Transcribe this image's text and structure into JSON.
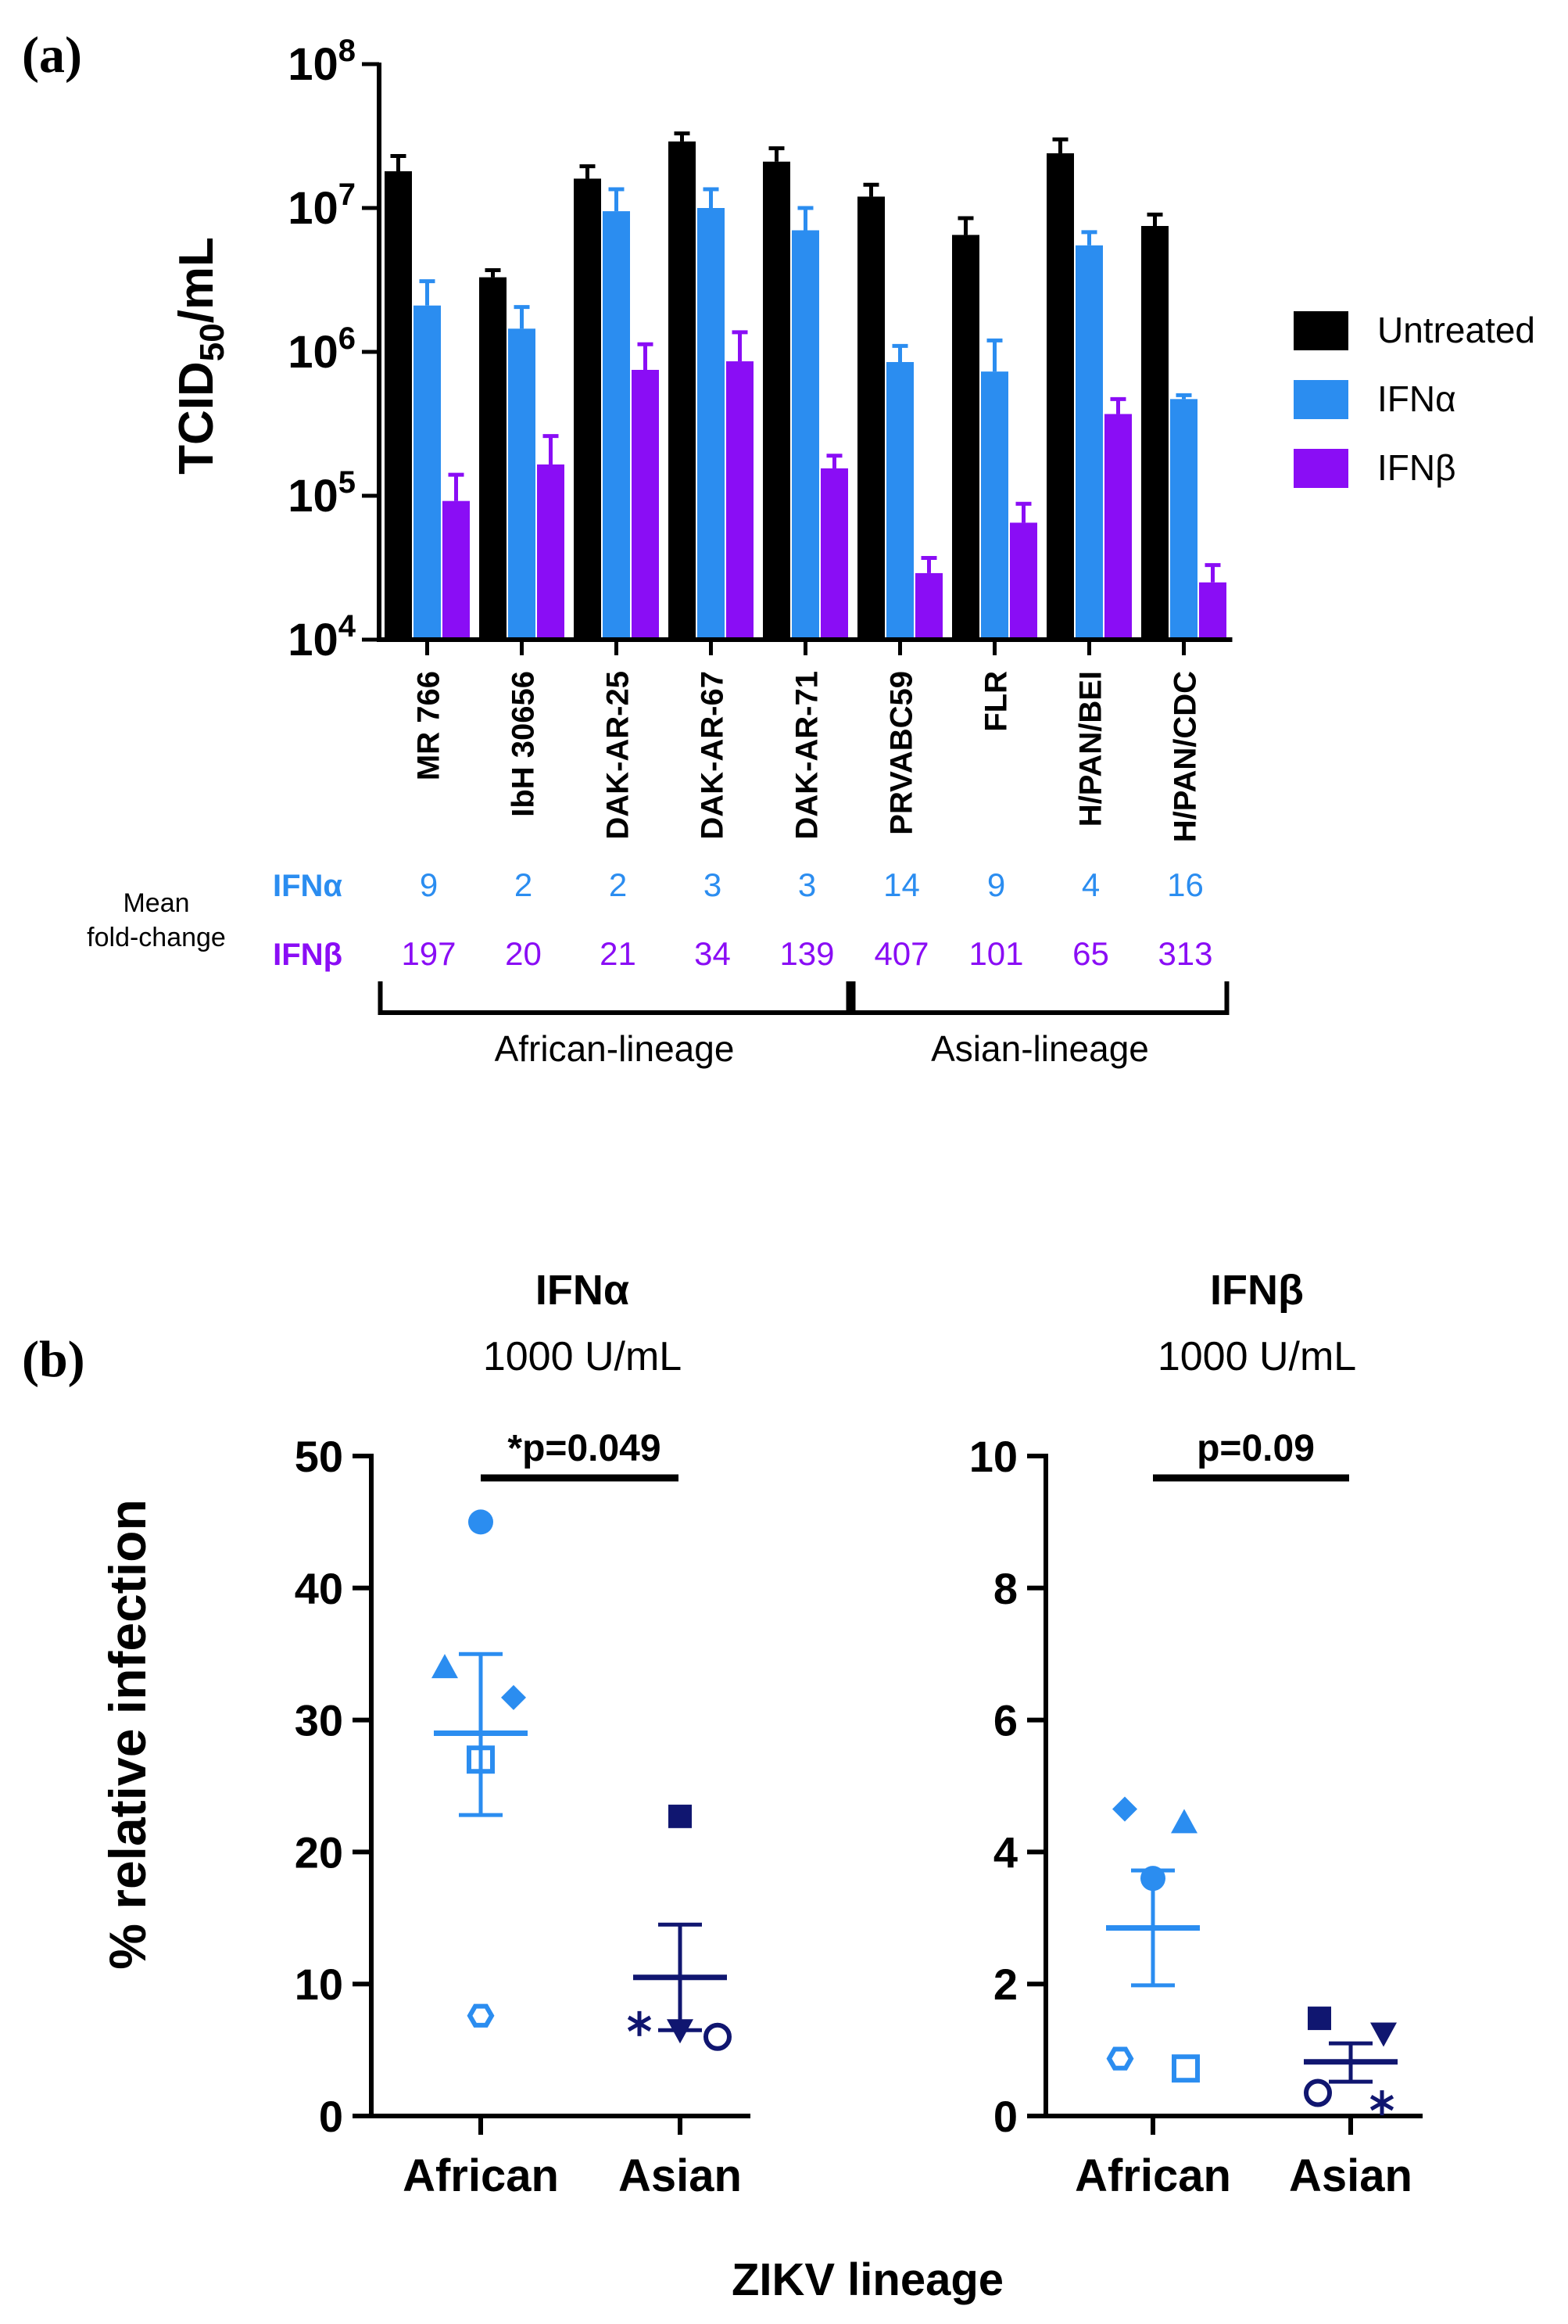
{
  "colors": {
    "untreated": "#000000",
    "ifna": "#2b8df0",
    "ifnb": "#8a0df5",
    "asian_marker": "#101670",
    "african_marker": "#2b8df0"
  },
  "panel_a": {
    "panel_label": "(a)",
    "y_axis_label": "TCID",
    "y_axis_label_sub": "50",
    "y_axis_label_suffix": "/mL",
    "y_ticks": [
      {
        "base": "10",
        "exp": "8",
        "value": 100000000
      },
      {
        "base": "10",
        "exp": "7",
        "value": 10000000
      },
      {
        "base": "10",
        "exp": "6",
        "value": 1000000
      },
      {
        "base": "10",
        "exp": "5",
        "value": 100000
      },
      {
        "base": "10",
        "exp": "4",
        "value": 10000
      }
    ],
    "legend": [
      {
        "label": "Untreated",
        "key": "untreated"
      },
      {
        "label": "IFNα",
        "key": "ifna"
      },
      {
        "label": "IFNβ",
        "key": "ifnb"
      }
    ],
    "fold_change_label_line1": "Mean",
    "fold_change_label_line2": "fold-change",
    "fold_change_rows": [
      {
        "label": "IFNα",
        "key": "ifna",
        "values": [
          "9",
          "2",
          "2",
          "3",
          "3",
          "14",
          "9",
          "4",
          "16"
        ]
      },
      {
        "label": "IFNβ",
        "key": "ifnb",
        "values": [
          "197",
          "20",
          "21",
          "34",
          "139",
          "407",
          "101",
          "65",
          "313"
        ]
      }
    ],
    "lineage_groups": [
      {
        "label": "African-lineage",
        "start_index": 0,
        "end_index": 4
      },
      {
        "label": "Asian-lineage",
        "start_index": 5,
        "end_index": 8
      }
    ]
  },
  "panel_b": {
    "panel_label": "(b)",
    "y_axis_label": "% relative infection",
    "x_axis_label": "ZIKV lineage",
    "categories": [
      "African",
      "Asian"
    ]
  },
  "chart_data": [
    {
      "type": "bar",
      "title": "",
      "ylabel": "TCID50/mL",
      "yscale": "log",
      "ylim": [
        10000,
        100000000
      ],
      "categories": [
        "MR 766",
        "IbH 30656",
        "DAK-AR-25",
        "DAK-AR-67",
        "DAK-AR-71",
        "PRVABC59",
        "FLR",
        "H/PAN/BEI",
        "H/PAN/CDC"
      ],
      "series": [
        {
          "name": "Untreated",
          "key": "untreated",
          "values": [
            18000000,
            3300000,
            16000000,
            29000000,
            21000000,
            12000000,
            6500000,
            24000000,
            7500000
          ],
          "err_upper": [
            23000000,
            3700000,
            19500000,
            33000000,
            26000000,
            14500000,
            8500000,
            30000000,
            9000000
          ]
        },
        {
          "name": "IFNα",
          "key": "ifna",
          "values": [
            2100000,
            1450000,
            9500000,
            10000000,
            7000000,
            850000,
            730000,
            5500000,
            470000
          ],
          "err_upper": [
            3100000,
            2050000,
            13500000,
            13500000,
            10000000,
            1100000,
            1200000,
            6800000,
            500000
          ]
        },
        {
          "name": "IFNβ",
          "key": "ifnb",
          "values": [
            92000,
            165000,
            750000,
            860000,
            155000,
            29000,
            65000,
            370000,
            25000
          ],
          "err_upper": [
            140000,
            260000,
            1130000,
            1370000,
            190000,
            37000,
            88000,
            470000,
            33000
          ]
        }
      ]
    },
    {
      "type": "scatter",
      "title": "IFNα",
      "subtitle": "1000 U/mL",
      "xlabel": "ZIKV lineage",
      "ylabel": "% relative infection",
      "ylim": [
        0,
        50
      ],
      "yticks": [
        0,
        10,
        20,
        30,
        40,
        50
      ],
      "categories": [
        "African",
        "Asian"
      ],
      "significance": {
        "label": "*p=0.049"
      },
      "groups": [
        {
          "name": "African",
          "mean": 29,
          "sem_upper": 35,
          "sem_lower": 22.8,
          "points": [
            {
              "value": 45,
              "marker": "filled-circle"
            },
            {
              "value": 34,
              "marker": "filled-triangle"
            },
            {
              "value": 31.7,
              "marker": "filled-diamond"
            },
            {
              "value": 27,
              "marker": "open-square"
            },
            {
              "value": 7.6,
              "marker": "open-hexagon"
            }
          ]
        },
        {
          "name": "Asian",
          "mean": 10.5,
          "sem_upper": 14.5,
          "sem_lower": 6.5,
          "points": [
            {
              "value": 22.7,
              "marker": "filled-square"
            },
            {
              "value": 7,
              "marker": "asterisk"
            },
            {
              "value": 6.5,
              "marker": "filled-down-triangle"
            },
            {
              "value": 6,
              "marker": "open-circle"
            }
          ]
        }
      ]
    },
    {
      "type": "scatter",
      "title": "IFNβ",
      "subtitle": "1000 U/mL",
      "xlabel": "ZIKV lineage",
      "ylabel": "% relative infection",
      "ylim": [
        0,
        10
      ],
      "yticks": [
        0,
        2,
        4,
        6,
        8,
        10
      ],
      "categories": [
        "African",
        "Asian"
      ],
      "significance": {
        "label": "p=0.09"
      },
      "groups": [
        {
          "name": "African",
          "mean": 2.85,
          "sem_upper": 3.72,
          "sem_lower": 1.98,
          "points": [
            {
              "value": 4.65,
              "marker": "filled-diamond"
            },
            {
              "value": 4.45,
              "marker": "filled-triangle"
            },
            {
              "value": 3.6,
              "marker": "filled-circle"
            },
            {
              "value": 0.87,
              "marker": "open-hexagon"
            },
            {
              "value": 0.72,
              "marker": "open-square"
            }
          ]
        },
        {
          "name": "Asian",
          "mean": 0.82,
          "sem_upper": 1.1,
          "sem_lower": 0.52,
          "points": [
            {
              "value": 1.48,
              "marker": "filled-square"
            },
            {
              "value": 1.25,
              "marker": "filled-down-triangle"
            },
            {
              "value": 0.35,
              "marker": "open-circle"
            },
            {
              "value": 0.2,
              "marker": "asterisk"
            }
          ]
        }
      ]
    }
  ]
}
